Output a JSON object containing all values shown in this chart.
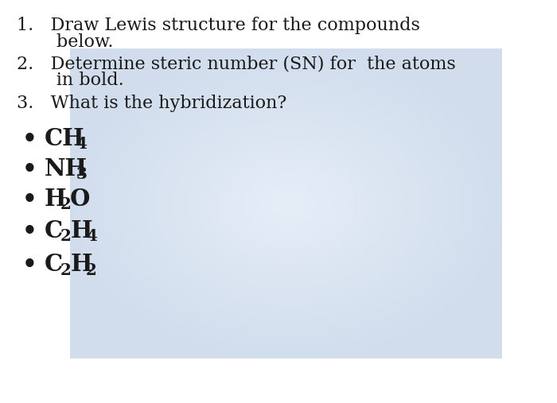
{
  "background_color": "#cdd8e6",
  "background_center": "#dce7f2",
  "text_color": "#1a1a1a",
  "items": [
    {
      "num": "1.",
      "line1": "Draw Lewis structure for the compounds",
      "line2": "    below."
    },
    {
      "num": "2.",
      "line1": "Determine steric number (SN) for  the atoms",
      "line2": "    in bold."
    },
    {
      "num": "3.",
      "line1": "What is the hybridization?",
      "line2": ""
    }
  ],
  "bullets": [
    [
      "CH",
      "4",
      "",
      ""
    ],
    [
      "NH",
      "3",
      "",
      ""
    ],
    [
      "H",
      "2",
      "O",
      ""
    ],
    [
      "C",
      "2",
      "H",
      "4"
    ],
    [
      "C",
      "2",
      "H",
      "2"
    ]
  ],
  "bullet_char": "•",
  "font_size_items": 16,
  "font_size_bullets": 21,
  "fig_width": 7.0,
  "fig_height": 5.07,
  "dpi": 100
}
